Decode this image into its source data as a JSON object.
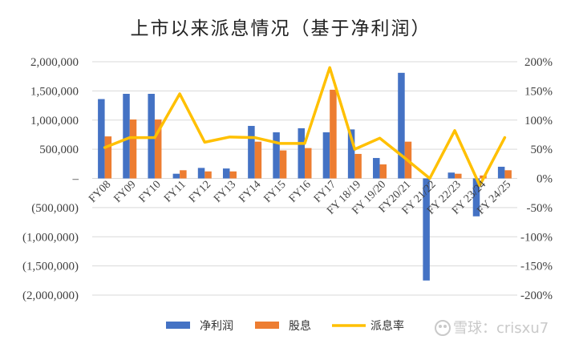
{
  "chart_data": {
    "type": "bar",
    "title": "上市以来派息情况（基于净利润）",
    "categories": [
      "FY08",
      "FY09",
      "FY10",
      "FY11",
      "FY12",
      "FY13",
      "FY14",
      "FY15",
      "FY16",
      "FY17",
      "FY 18/19",
      "FY 19/20",
      "FY20/21",
      "FY 21/22",
      "FY 22/23",
      "FY 23/24",
      "FY 24/25"
    ],
    "series": [
      {
        "name": "净利润",
        "type": "bar",
        "axis": "left",
        "color": "#4472C4",
        "values": [
          1360000,
          1450000,
          1450000,
          80000,
          180000,
          170000,
          900000,
          790000,
          860000,
          790000,
          840000,
          350000,
          1810000,
          -1750000,
          100000,
          -650000,
          200000
        ]
      },
      {
        "name": "股息",
        "type": "bar",
        "axis": "left",
        "color": "#ED7D31",
        "values": [
          720000,
          1010000,
          1010000,
          140000,
          120000,
          120000,
          630000,
          480000,
          520000,
          1520000,
          420000,
          240000,
          630000,
          0,
          80000,
          50000,
          140000
        ]
      },
      {
        "name": "派息率",
        "type": "line",
        "axis": "right",
        "color": "#FFC000",
        "values": [
          0.53,
          0.7,
          0.7,
          1.45,
          0.62,
          0.71,
          0.7,
          0.6,
          0.6,
          1.9,
          0.5,
          0.69,
          0.35,
          0.0,
          0.82,
          -0.12,
          0.7
        ]
      }
    ],
    "y_left": {
      "min": -2000000,
      "max": 2000000,
      "step": 500000,
      "ticks": [
        "2,000,000",
        "1,500,000",
        "1,000,000",
        "500,000",
        "–",
        "(500,000)",
        "(1,000,000)",
        "(1,500,000)",
        "(2,000,000)"
      ]
    },
    "y_right": {
      "min": -2.0,
      "max": 2.0,
      "step": 0.5,
      "ticks": [
        "200%",
        "150%",
        "100%",
        "50%",
        "0%",
        "-50%",
        "-100%",
        "-150%",
        "-200%"
      ]
    },
    "grid": true,
    "legend": "bottom"
  },
  "watermark": {
    "text": "雪球：crisxu7"
  }
}
